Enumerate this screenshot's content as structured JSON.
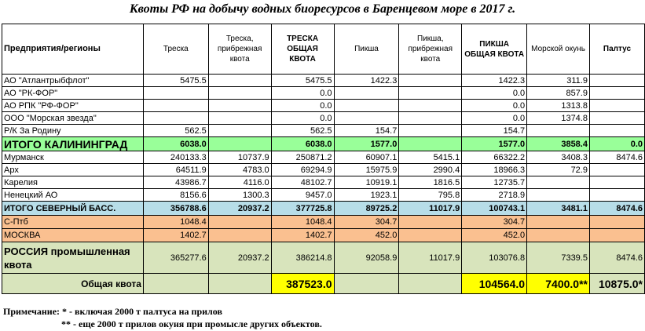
{
  "title": "Квоты РФ на добычу водных биоресурсов в Баренцевом море в 2017 г.",
  "headers": [
    "Предприятия/регионы",
    "Треска",
    "Треска, прибрежная квота",
    "ТРЕСКА ОБЩАЯ КВОТА",
    "Пикша",
    "Пикша, прибрежная квота",
    "ПИКША ОБЩАЯ КВОТА",
    "Морской окунь",
    "Палтус"
  ],
  "rows": [
    {
      "name": "АО \"Атлантрыбфлот\"",
      "v": [
        "5475.5",
        "",
        "5475.5",
        "1422.3",
        "",
        "1422.3",
        "311.9",
        ""
      ]
    },
    {
      "name": "АО \"РК-ФОР\"",
      "v": [
        "",
        "",
        "0.0",
        "",
        "",
        "0.0",
        "857.9",
        ""
      ]
    },
    {
      "name": "АО РПК \"РФ-ФОР\"",
      "v": [
        "",
        "",
        "0.0",
        "",
        "",
        "0.0",
        "1313.8",
        ""
      ]
    },
    {
      "name": "ООО \"Морская звезда\"",
      "v": [
        "",
        "",
        "0.0",
        "",
        "",
        "0.0",
        "1374.8",
        ""
      ]
    },
    {
      "name": "Р/К За Родину",
      "v": [
        "562.5",
        "",
        "562.5",
        "154.7",
        "",
        "154.7",
        "",
        ""
      ]
    }
  ],
  "total_kaliningrad": {
    "name": "ИТОГО КАЛИНИНГРАД",
    "v": [
      "6038.0",
      "",
      "6038.0",
      "1577.0",
      "",
      "1577.0",
      "3858.4",
      "0.0"
    ]
  },
  "rows_north": [
    {
      "name": "Мурманск",
      "v": [
        "240133.3",
        "10737.9",
        "250871.2",
        "60907.1",
        "5415.1",
        "66322.2",
        "3408.3",
        "8474.6"
      ]
    },
    {
      "name": "Арх",
      "v": [
        "64511.9",
        "4783.0",
        "69294.9",
        "15975.9",
        "2990.4",
        "18966.3",
        "72.9",
        ""
      ]
    },
    {
      "name": "Карелия",
      "v": [
        "43986.7",
        "4116.0",
        "48102.7",
        "10919.1",
        "1816.5",
        "12735.7",
        "",
        ""
      ]
    },
    {
      "name": "Ненецкий АО",
      "v": [
        "8156.6",
        "1300.3",
        "9457.0",
        "1923.1",
        "795.8",
        "2718.9",
        "",
        ""
      ]
    }
  ],
  "total_north": {
    "name": "ИТОГО СЕВЕРНЫЙ БАСС.",
    "v": [
      "356788.6",
      "20937.2",
      "377725.8",
      "89725.2",
      "11017.9",
      "100743.1",
      "3481.1",
      "8474.6"
    ]
  },
  "rows_other": [
    {
      "name": "С-Птб",
      "v": [
        "1048.4",
        "",
        "1048.4",
        "304.7",
        "",
        "304.7",
        "",
        ""
      ]
    },
    {
      "name": "МОСКВА",
      "v": [
        "1402.7",
        "",
        "1402.7",
        "452.0",
        "",
        "452.0",
        "",
        ""
      ]
    }
  ],
  "russia": {
    "name": "РОССИЯ промышленная квота",
    "v": [
      "365277.6",
      "20937.2",
      "386214.8",
      "92058.9",
      "11017.9",
      "103076.8",
      "7339.5",
      "8474.6"
    ]
  },
  "general": {
    "name": "Общая квота",
    "v": [
      "",
      "",
      "387523.0",
      "",
      "",
      "104564.0",
      "7400.0**",
      "10875.0*"
    ]
  },
  "notes": {
    "line1": "Примечание: * - включая 2000 т палтуса на прилов",
    "line2": "** - еще 2000 т прилов окуня при промысле других объектов."
  },
  "colors": {
    "kaliningrad": "#99ff99",
    "north": "#b7dde8",
    "orange": "#fac090",
    "russia": "#d8e4bc",
    "highlight": "#ffff00"
  }
}
